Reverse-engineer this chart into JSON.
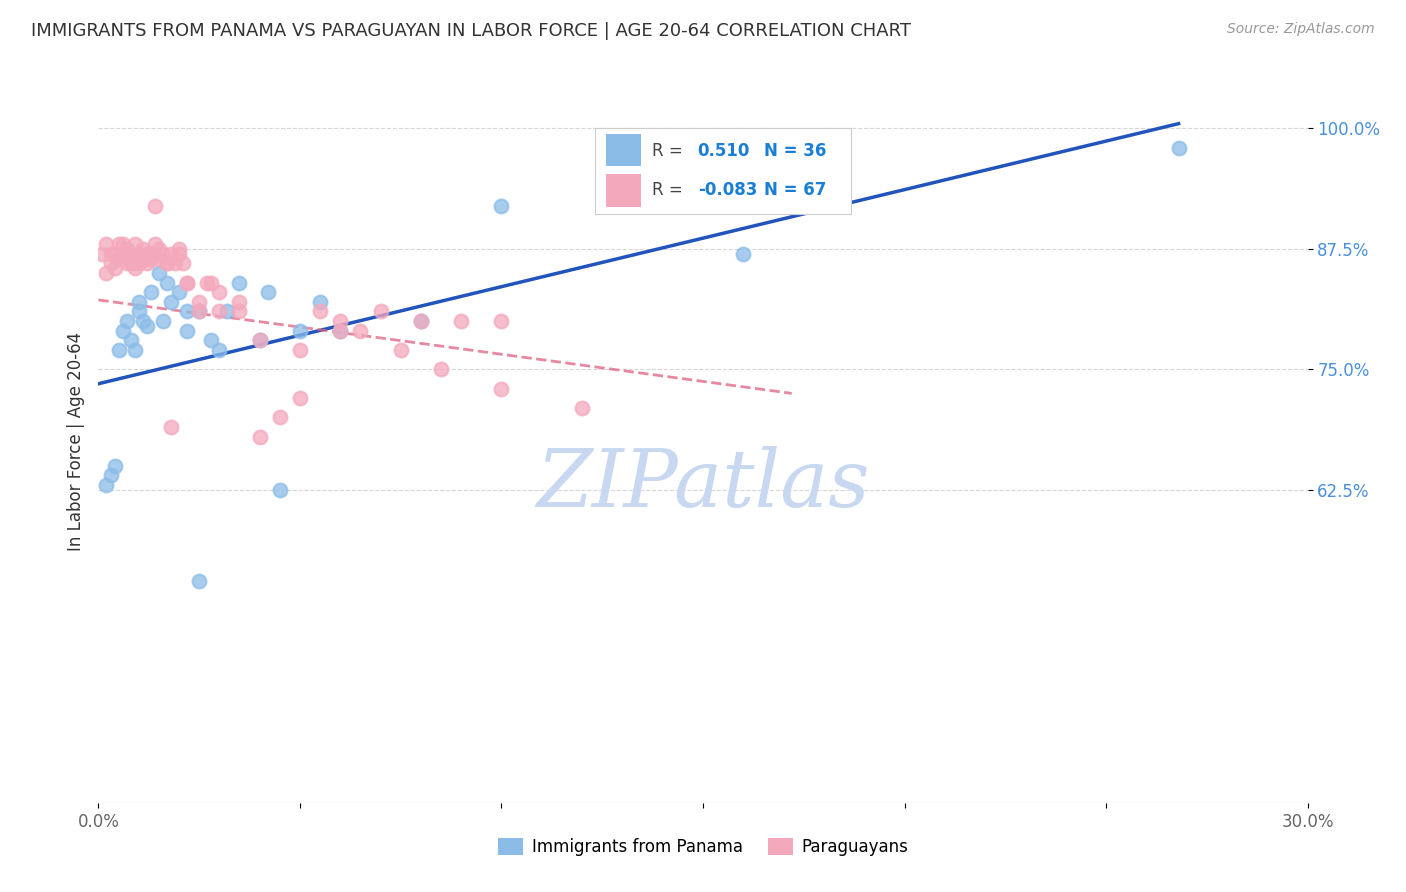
{
  "title": "IMMIGRANTS FROM PANAMA VS PARAGUAYAN IN LABOR FORCE | AGE 20-64 CORRELATION CHART",
  "source": "Source: ZipAtlas.com",
  "ylabel": "In Labor Force | Age 20-64",
  "xlim": [
    0.0,
    0.3
  ],
  "ylim": [
    0.3,
    1.05
  ],
  "xticks": [
    0.0,
    0.05,
    0.1,
    0.15,
    0.2,
    0.25,
    0.3
  ],
  "xticklabels": [
    "0.0%",
    "",
    "",
    "",
    "",
    "",
    "30.0%"
  ],
  "ytick_positions": [
    0.625,
    0.75,
    0.875,
    1.0
  ],
  "ytick_labels": [
    "62.5%",
    "75.0%",
    "87.5%",
    "100.0%"
  ],
  "panama_color": "#8bbce8",
  "paraguay_color": "#f4a8bc",
  "panama_line_color": "#2255bb",
  "paraguay_line_color": "#e06080",
  "watermark_color": "#c8d8f0",
  "panama_line_x0": 0.0,
  "panama_line_y0": 0.735,
  "panama_line_x1": 0.268,
  "panama_line_y1": 1.005,
  "paraguay_line_x0": 0.0,
  "paraguay_line_y0": 0.822,
  "paraguay_line_x1": 0.172,
  "paraguay_line_y1": 0.725,
  "panama_x": [
    0.002,
    0.003,
    0.004,
    0.005,
    0.006,
    0.007,
    0.008,
    0.009,
    0.01,
    0.01,
    0.011,
    0.012,
    0.013,
    0.015,
    0.016,
    0.017,
    0.018,
    0.02,
    0.022,
    0.025,
    0.028,
    0.03,
    0.032,
    0.035,
    0.04,
    0.042,
    0.05,
    0.055,
    0.06,
    0.08,
    0.022,
    0.025,
    0.16,
    0.1,
    0.045,
    0.268
  ],
  "panama_y": [
    0.63,
    0.64,
    0.65,
    0.77,
    0.79,
    0.8,
    0.78,
    0.77,
    0.82,
    0.81,
    0.8,
    0.795,
    0.83,
    0.85,
    0.8,
    0.84,
    0.82,
    0.83,
    0.81,
    0.81,
    0.78,
    0.77,
    0.81,
    0.84,
    0.78,
    0.83,
    0.79,
    0.82,
    0.79,
    0.8,
    0.79,
    0.53,
    0.87,
    0.92,
    0.625,
    0.98
  ],
  "paraguay_x": [
    0.001,
    0.002,
    0.002,
    0.003,
    0.003,
    0.004,
    0.004,
    0.005,
    0.005,
    0.006,
    0.006,
    0.007,
    0.007,
    0.008,
    0.008,
    0.009,
    0.009,
    0.01,
    0.011,
    0.011,
    0.012,
    0.012,
    0.013,
    0.014,
    0.015,
    0.016,
    0.017,
    0.018,
    0.019,
    0.02,
    0.021,
    0.022,
    0.025,
    0.027,
    0.03,
    0.035,
    0.04,
    0.045,
    0.05,
    0.055,
    0.06,
    0.065,
    0.075,
    0.085,
    0.1,
    0.12,
    0.008,
    0.009,
    0.01,
    0.013,
    0.015,
    0.017,
    0.02,
    0.022,
    0.025,
    0.028,
    0.03,
    0.035,
    0.04,
    0.05,
    0.06,
    0.07,
    0.08,
    0.09,
    0.1,
    0.014,
    0.018
  ],
  "paraguay_y": [
    0.87,
    0.88,
    0.85,
    0.87,
    0.86,
    0.87,
    0.855,
    0.88,
    0.865,
    0.88,
    0.87,
    0.875,
    0.86,
    0.87,
    0.865,
    0.88,
    0.86,
    0.87,
    0.875,
    0.865,
    0.87,
    0.86,
    0.865,
    0.88,
    0.875,
    0.87,
    0.86,
    0.87,
    0.86,
    0.87,
    0.86,
    0.84,
    0.81,
    0.84,
    0.83,
    0.82,
    0.68,
    0.7,
    0.72,
    0.81,
    0.8,
    0.79,
    0.77,
    0.75,
    0.73,
    0.71,
    0.86,
    0.855,
    0.86,
    0.87,
    0.865,
    0.86,
    0.875,
    0.84,
    0.82,
    0.84,
    0.81,
    0.81,
    0.78,
    0.77,
    0.79,
    0.81,
    0.8,
    0.8,
    0.8,
    0.92,
    0.69
  ]
}
